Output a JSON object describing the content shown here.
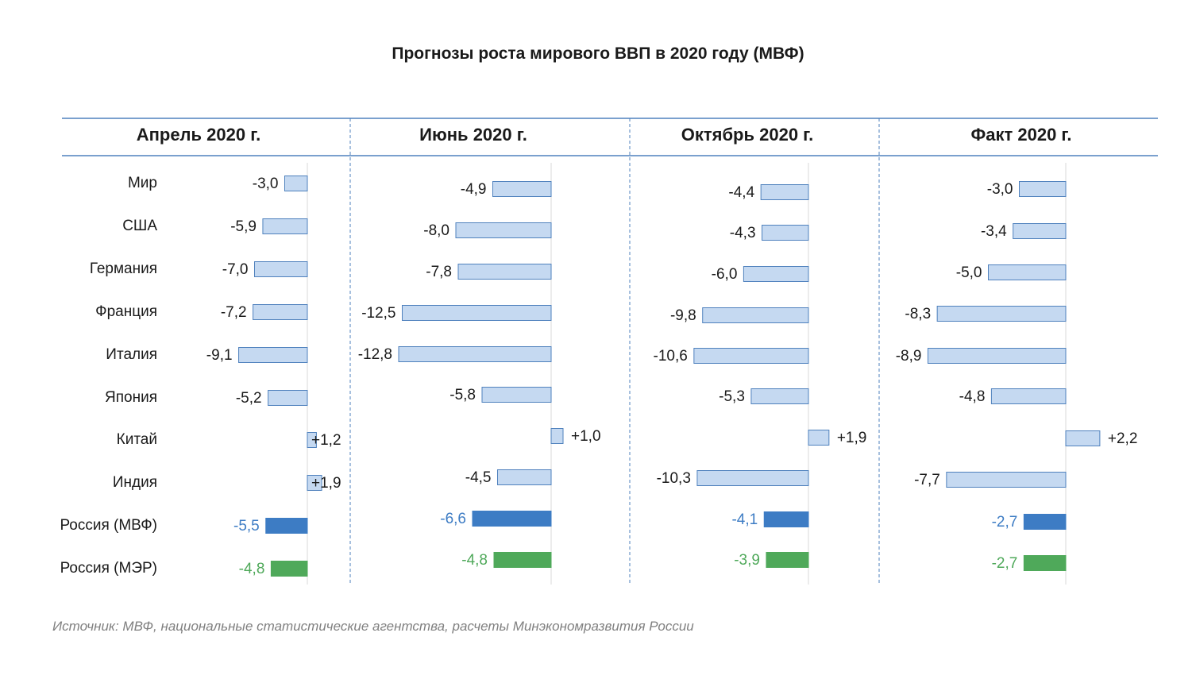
{
  "title": "Прогнозы роста мирового ВВП в 2020 году (МВФ)",
  "source": "Источник: МВФ, национальные статистические агентства, расчеты Минэкономразвития России",
  "colors": {
    "bar_fill": "#c5d9f1",
    "bar_stroke": "#4f81bd",
    "russia_imf": "#3d7cc4",
    "russia_mer": "#4fa95a",
    "text": "#1a1a1a",
    "rule": "#4f81bd"
  },
  "chart_data": {
    "type": "bar",
    "orientation": "horizontal",
    "title": "Прогнозы роста мирового ВВП в 2020 году (МВФ)",
    "categories": [
      "Мир",
      "США",
      "Германия",
      "Франция",
      "Италия",
      "Япония",
      "Китай",
      "Индия",
      "Россия (МВФ)",
      "Россия (МЭР)"
    ],
    "panels": [
      {
        "name": "Апрель 2020 г.",
        "values": [
          -3.0,
          -5.9,
          -7.0,
          -7.2,
          -9.1,
          -5.2,
          1.2,
          1.9,
          -5.5,
          -4.8
        ],
        "labels": [
          "-3,0",
          "-5,9",
          "-7,0",
          "-7,2",
          "-9,1",
          "-5,2",
          "+1,2",
          "+1,9",
          "-5,5",
          "-4,8"
        ]
      },
      {
        "name": "Июнь 2020 г.",
        "values": [
          -4.9,
          -8.0,
          -7.8,
          -12.5,
          -12.8,
          -5.8,
          1.0,
          -4.5,
          -6.6,
          -4.8
        ],
        "labels": [
          "-4,9",
          "-8,0",
          "-7,8",
          "-12,5",
          "-12,8",
          "-5,8",
          "+1,0",
          "-4,5",
          "-6,6",
          "-4,8"
        ]
      },
      {
        "name": "Октябрь 2020 г.",
        "values": [
          -4.4,
          -4.3,
          -6.0,
          -9.8,
          -10.6,
          -5.3,
          1.9,
          -10.3,
          -4.1,
          -3.9
        ],
        "labels": [
          "-4,4",
          "-4,3",
          "-6,0",
          "-9,8",
          "-10,6",
          "-5,3",
          "+1,9",
          "-10,3",
          "-4,1",
          "-3,9"
        ]
      },
      {
        "name": "Факт 2020 г.",
        "values": [
          -3.0,
          -3.4,
          -5.0,
          -8.3,
          -8.9,
          -4.8,
          2.2,
          -7.7,
          -2.7,
          -2.7
        ],
        "labels": [
          "-3,0",
          "-3,4",
          "-5,0",
          "-8,3",
          "-8,9",
          "-4,8",
          "+2,2",
          "-7,7",
          "-2,7",
          "-2,7"
        ]
      }
    ]
  }
}
